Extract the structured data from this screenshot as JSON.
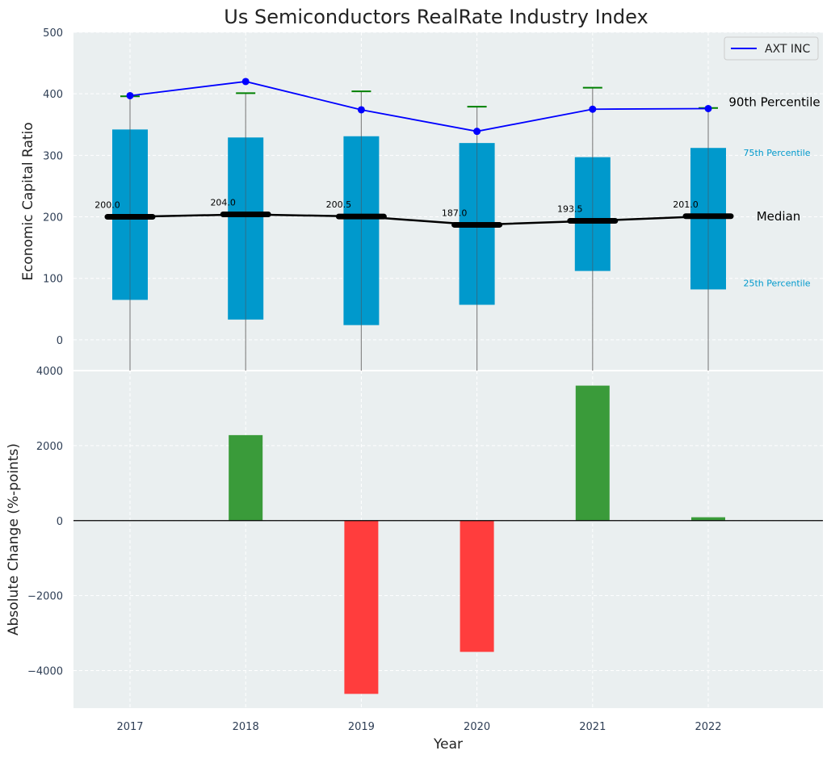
{
  "chart_data": [
    {
      "type": "box",
      "title": "Us Semiconductors RealRate Industry Index",
      "ylabel": "Economic Capital Ratio",
      "categories": [
        "2017",
        "2018",
        "2019",
        "2020",
        "2021",
        "2022"
      ],
      "ylim": [
        -50,
        500
      ],
      "yticks": [
        0,
        100,
        200,
        300,
        400,
        500
      ],
      "p25": [
        65,
        33,
        24,
        57,
        112,
        82
      ],
      "p75": [
        342,
        329,
        331,
        320,
        297,
        312
      ],
      "median": [
        200.0,
        204.0,
        200.5,
        187.0,
        193.5,
        201.0
      ],
      "median_labels": [
        "200.0",
        "204.0",
        "200.5",
        "187.0",
        "193.5",
        "201.0"
      ],
      "p90": [
        396,
        401,
        404,
        379,
        410,
        377
      ],
      "series": [
        {
          "name": "AXT INC",
          "values": [
            397,
            420,
            374,
            339,
            375,
            376
          ],
          "color": "#0000ff"
        }
      ],
      "annotations": {
        "p90": "90th Percentile",
        "p75": "75th Percentile",
        "median": "Median",
        "p25": "25th Percentile"
      },
      "legend": "top-right",
      "grid": true,
      "colors": {
        "box": "#0099cc",
        "median": "#000000",
        "p90_cap": "#008000",
        "whisker": "#888888",
        "background": "#eaeff0"
      }
    },
    {
      "type": "bar",
      "xlabel": "Year",
      "ylabel": "Absolute Change (%-points)",
      "categories": [
        "2017",
        "2018",
        "2019",
        "2020",
        "2021",
        "2022"
      ],
      "values": [
        0,
        2280,
        -4620,
        -3500,
        3600,
        90
      ],
      "ylim": [
        -5000,
        4000
      ],
      "yticks": [
        -4000,
        -2000,
        0,
        2000,
        4000
      ],
      "grid": true,
      "colors": {
        "positive": "#3a9b3a",
        "negative": "#ff3d3d"
      }
    }
  ]
}
